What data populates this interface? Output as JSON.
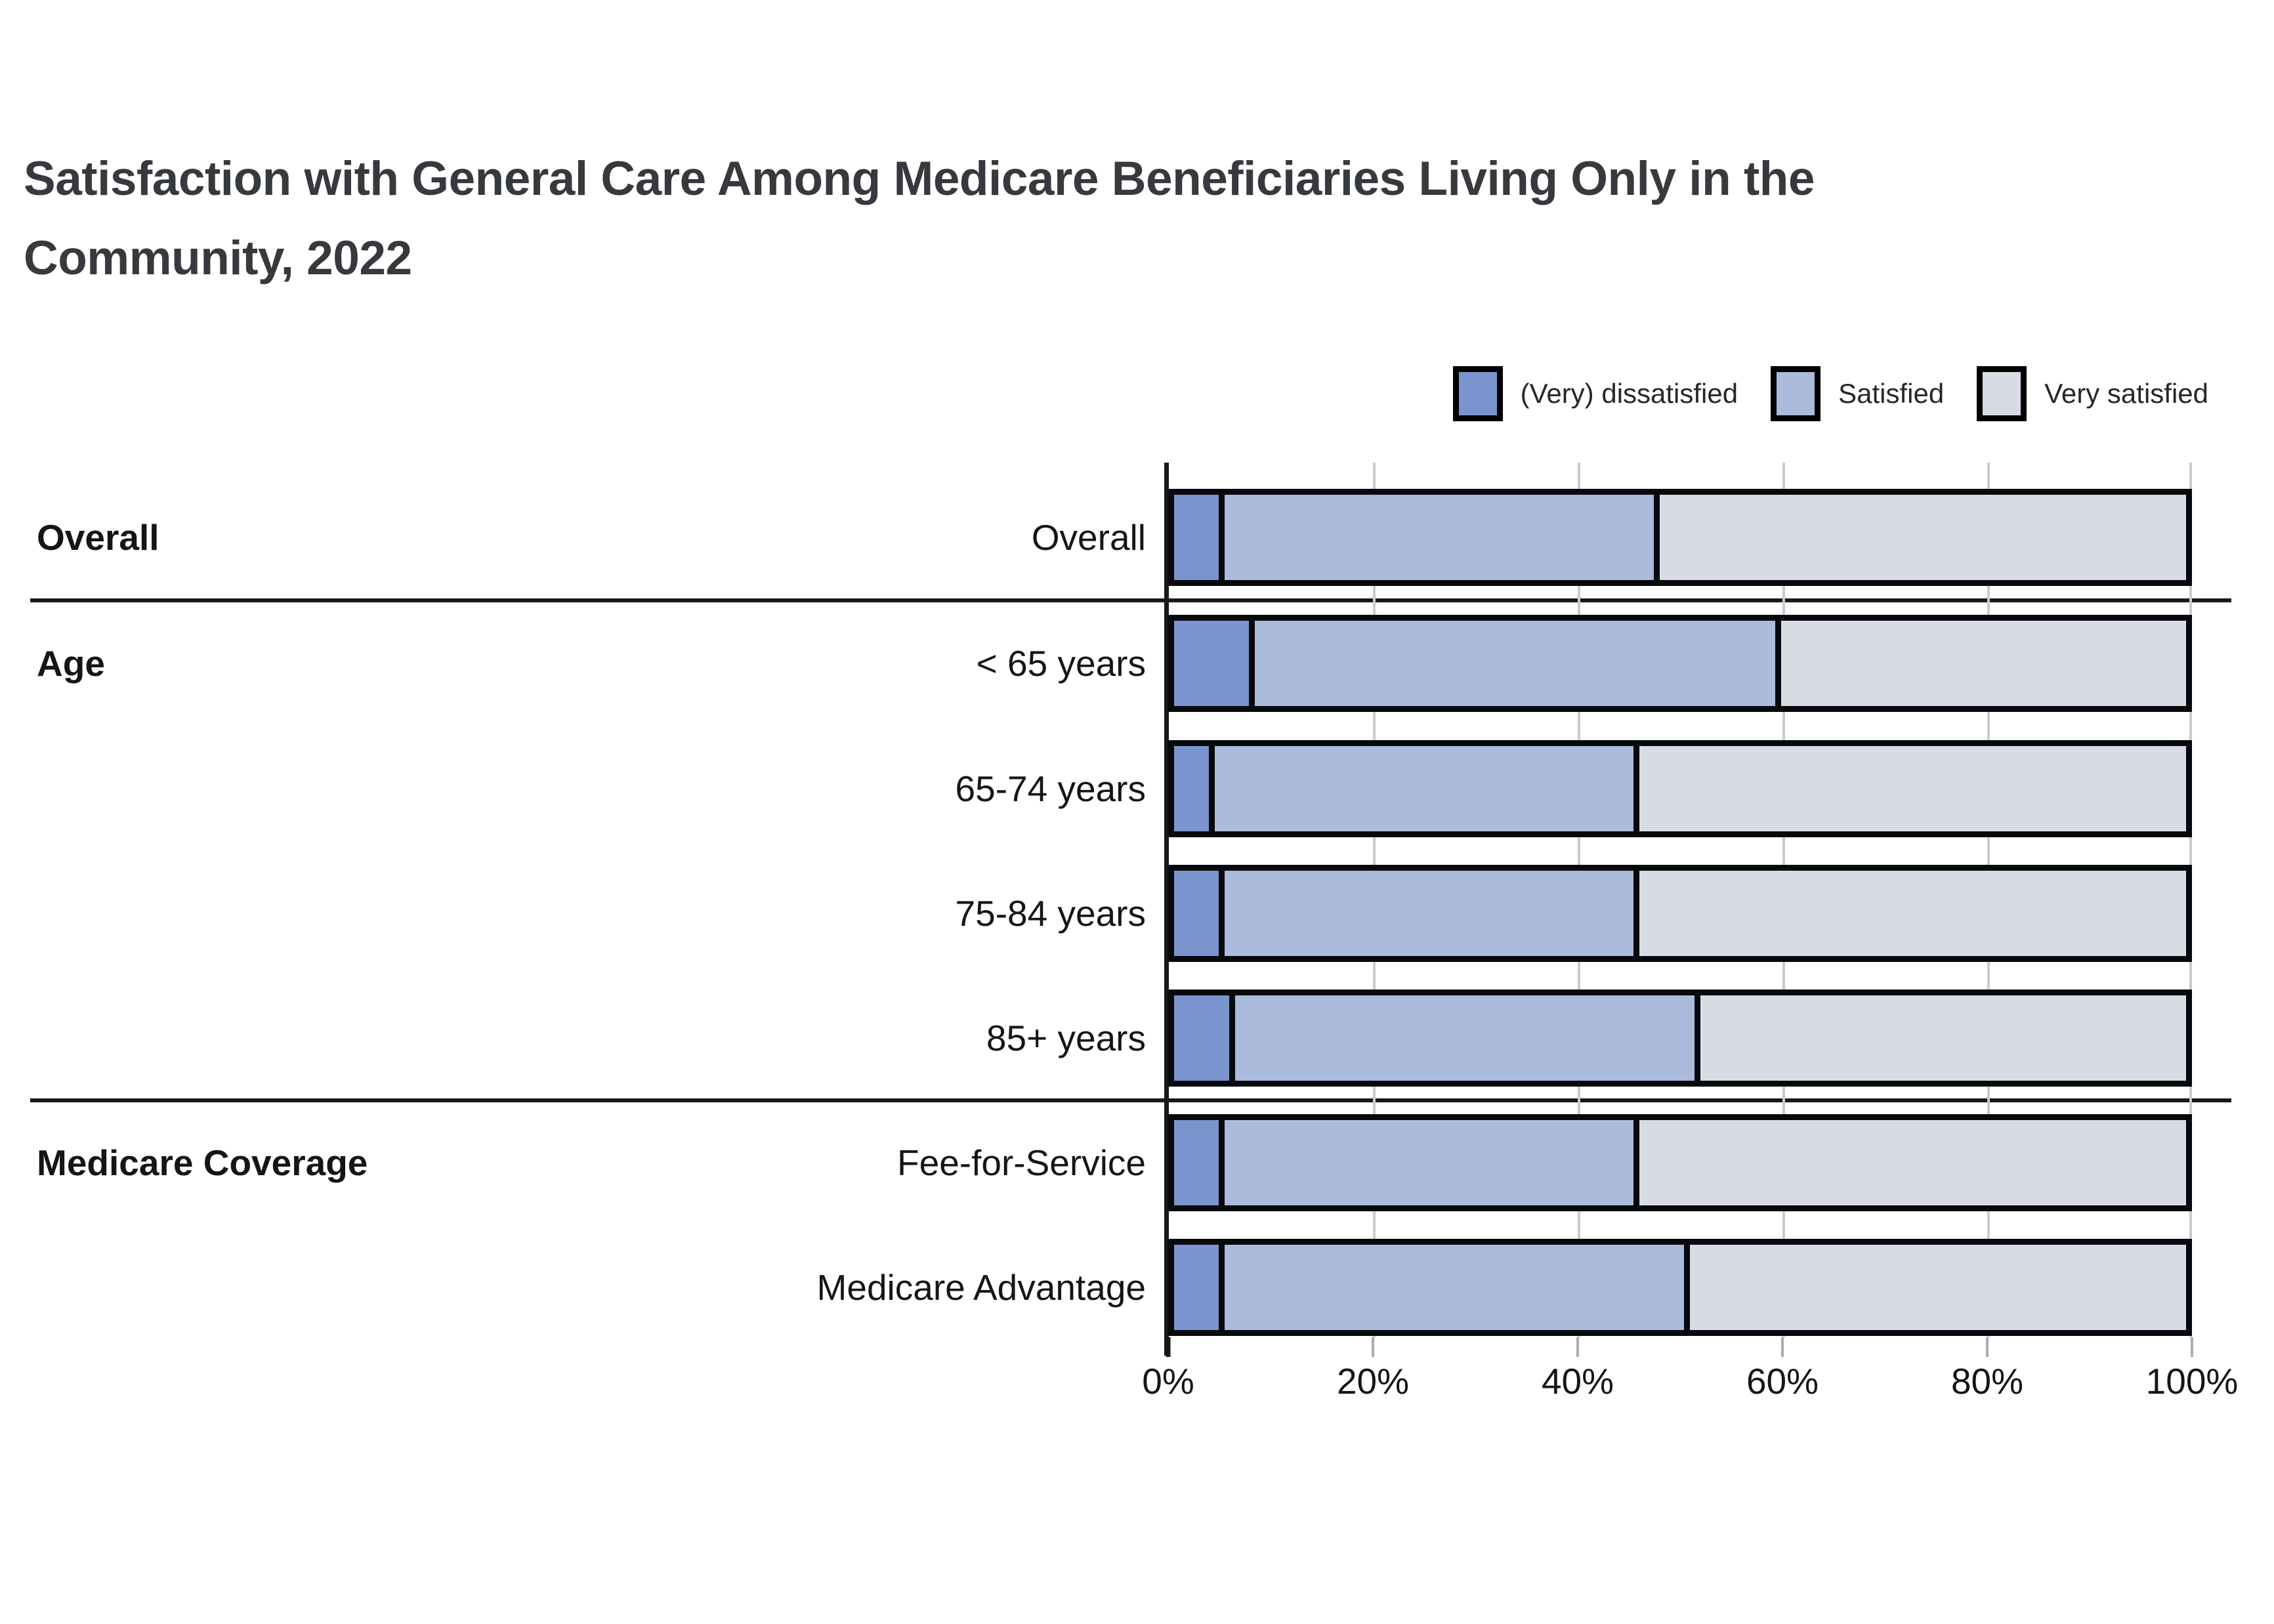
{
  "title": "Satisfaction with General Care Among Medicare Beneficiaries Living Only in the Community, 2022",
  "legend": [
    {
      "label": "(Very) dissatisfied",
      "color": "#7A95CD"
    },
    {
      "label": "Satisfied",
      "color": "#AABBDB"
    },
    {
      "label": "Very satisfied",
      "color": "#D6DBE4"
    }
  ],
  "colors": {
    "bar_border": "#07090d",
    "axis_line": "#15181c",
    "gridline": "#cbcbcb",
    "separator": "#17191c",
    "text": "#131619",
    "title": "#36393d"
  },
  "chart_data": {
    "type": "bar",
    "orientation": "horizontal",
    "stacked": true,
    "units": "percent",
    "title": "Satisfaction with General Care Among Medicare Beneficiaries Living Only in the Community, 2022",
    "categories": [
      "Overall",
      "< 65 years",
      "65-74 years",
      "75-84 years",
      "85+ years",
      "Fee-for-Service",
      "Medicare Advantage"
    ],
    "series": [
      {
        "name": "(Very) dissatisfied",
        "values": [
          5,
          8,
          4,
          5,
          6,
          5,
          5
        ]
      },
      {
        "name": "Satisfied",
        "values": [
          43,
          52,
          42,
          41,
          46,
          41,
          46
        ]
      },
      {
        "name": "Very satisfied",
        "values": [
          52,
          40,
          54,
          54,
          48,
          54,
          49
        ]
      }
    ],
    "sections": [
      {
        "label": "Overall",
        "rows": [
          "Overall"
        ]
      },
      {
        "label": "Age",
        "rows": [
          "< 65 years",
          "65-74 years",
          "75-84 years",
          "85+ years"
        ]
      },
      {
        "label": "Medicare Coverage",
        "rows": [
          "Fee-for-Service",
          "Medicare Advantage"
        ]
      }
    ],
    "x_ticks": [
      "0%",
      "20%",
      "40%",
      "60%",
      "80%",
      "100%"
    ],
    "xlim": [
      0,
      100
    ],
    "grid": true,
    "legend_position": "top-right"
  }
}
